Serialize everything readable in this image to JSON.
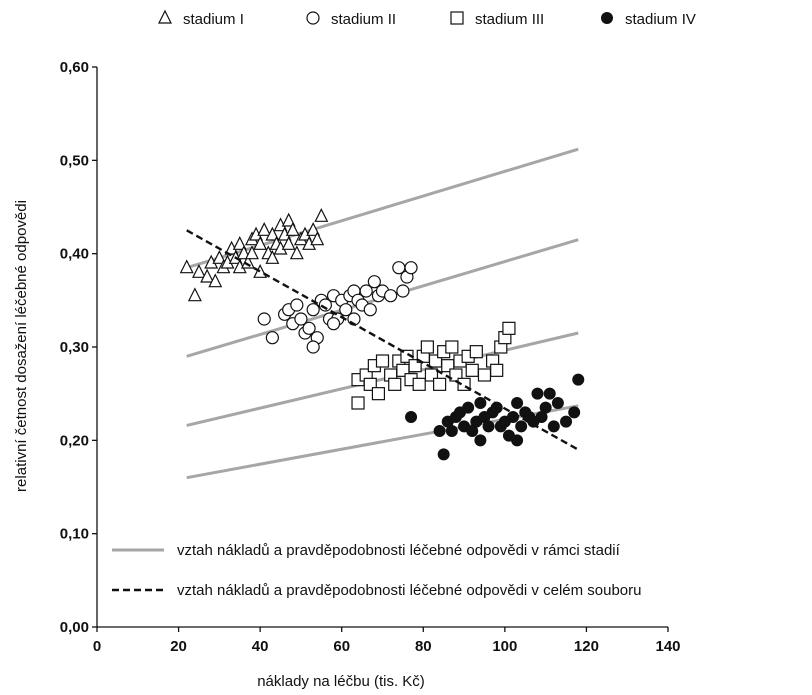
{
  "chart_data": {
    "type": "scatter",
    "xlabel": "náklady na léčbu (tis. Kč)",
    "ylabel": "relativní četnost dosažení léčebné odpovědi",
    "xlim": [
      0,
      140
    ],
    "ylim": [
      0,
      0.6
    ],
    "x_ticks": [
      0,
      20,
      40,
      60,
      80,
      100,
      120,
      140
    ],
    "x_tick_labels": [
      "0",
      "20",
      "40",
      "60",
      "80",
      "100",
      "120",
      "140"
    ],
    "y_ticks": [
      0,
      0.1,
      0.2,
      0.3,
      0.4,
      0.5,
      0.6
    ],
    "y_tick_labels": [
      "0,00",
      "0,10",
      "0,20",
      "0,30",
      "0,40",
      "0,50",
      "0,60"
    ],
    "grid": false,
    "series": [
      {
        "name": "stadium I",
        "marker": "triangle-open",
        "points": [
          [
            22,
            0.385
          ],
          [
            24,
            0.355
          ],
          [
            25,
            0.38
          ],
          [
            27,
            0.375
          ],
          [
            28,
            0.39
          ],
          [
            29,
            0.37
          ],
          [
            30,
            0.395
          ],
          [
            31,
            0.385
          ],
          [
            32,
            0.39
          ],
          [
            33,
            0.405
          ],
          [
            34,
            0.395
          ],
          [
            35,
            0.41
          ],
          [
            35,
            0.385
          ],
          [
            36,
            0.4
          ],
          [
            37,
            0.39
          ],
          [
            38,
            0.415
          ],
          [
            38,
            0.4
          ],
          [
            39,
            0.42
          ],
          [
            40,
            0.38
          ],
          [
            40,
            0.41
          ],
          [
            41,
            0.425
          ],
          [
            42,
            0.4
          ],
          [
            43,
            0.42
          ],
          [
            43,
            0.395
          ],
          [
            44,
            0.41
          ],
          [
            45,
            0.43
          ],
          [
            45,
            0.405
          ],
          [
            46,
            0.42
          ],
          [
            47,
            0.435
          ],
          [
            47,
            0.41
          ],
          [
            48,
            0.425
          ],
          [
            49,
            0.4
          ],
          [
            50,
            0.415
          ],
          [
            51,
            0.42
          ],
          [
            52,
            0.41
          ],
          [
            53,
            0.425
          ],
          [
            54,
            0.415
          ],
          [
            55,
            0.44
          ]
        ]
      },
      {
        "name": "stadium II",
        "marker": "circle-open",
        "points": [
          [
            41,
            0.33
          ],
          [
            43,
            0.31
          ],
          [
            46,
            0.335
          ],
          [
            47,
            0.34
          ],
          [
            48,
            0.325
          ],
          [
            49,
            0.345
          ],
          [
            50,
            0.33
          ],
          [
            51,
            0.315
          ],
          [
            52,
            0.32
          ],
          [
            53,
            0.34
          ],
          [
            54,
            0.31
          ],
          [
            55,
            0.35
          ],
          [
            56,
            0.345
          ],
          [
            57,
            0.33
          ],
          [
            58,
            0.355
          ],
          [
            59,
            0.33
          ],
          [
            60,
            0.35
          ],
          [
            61,
            0.34
          ],
          [
            62,
            0.355
          ],
          [
            63,
            0.33
          ],
          [
            63,
            0.36
          ],
          [
            64,
            0.35
          ],
          [
            65,
            0.345
          ],
          [
            66,
            0.36
          ],
          [
            67,
            0.34
          ],
          [
            68,
            0.37
          ],
          [
            69,
            0.355
          ],
          [
            70,
            0.36
          ],
          [
            72,
            0.355
          ],
          [
            74,
            0.385
          ],
          [
            75,
            0.36
          ],
          [
            76,
            0.375
          ],
          [
            77,
            0.385
          ],
          [
            53,
            0.3
          ],
          [
            58,
            0.325
          ]
        ]
      },
      {
        "name": "stadium III",
        "marker": "square-open",
        "points": [
          [
            64,
            0.265
          ],
          [
            64,
            0.24
          ],
          [
            66,
            0.27
          ],
          [
            67,
            0.26
          ],
          [
            68,
            0.28
          ],
          [
            69,
            0.25
          ],
          [
            70,
            0.285
          ],
          [
            72,
            0.27
          ],
          [
            73,
            0.26
          ],
          [
            74,
            0.285
          ],
          [
            75,
            0.275
          ],
          [
            76,
            0.29
          ],
          [
            77,
            0.265
          ],
          [
            78,
            0.28
          ],
          [
            79,
            0.26
          ],
          [
            80,
            0.29
          ],
          [
            81,
            0.3
          ],
          [
            82,
            0.27
          ],
          [
            83,
            0.285
          ],
          [
            84,
            0.26
          ],
          [
            85,
            0.295
          ],
          [
            86,
            0.28
          ],
          [
            87,
            0.3
          ],
          [
            88,
            0.27
          ],
          [
            89,
            0.285
          ],
          [
            90,
            0.26
          ],
          [
            91,
            0.29
          ],
          [
            92,
            0.275
          ],
          [
            93,
            0.295
          ],
          [
            95,
            0.27
          ],
          [
            97,
            0.285
          ],
          [
            98,
            0.275
          ],
          [
            99,
            0.3
          ],
          [
            100,
            0.31
          ],
          [
            101,
            0.32
          ]
        ]
      },
      {
        "name": "stadium IV",
        "marker": "circle-filled",
        "points": [
          [
            77,
            0.225
          ],
          [
            84,
            0.21
          ],
          [
            85,
            0.185
          ],
          [
            86,
            0.22
          ],
          [
            87,
            0.21
          ],
          [
            88,
            0.225
          ],
          [
            89,
            0.23
          ],
          [
            90,
            0.215
          ],
          [
            91,
            0.235
          ],
          [
            92,
            0.21
          ],
          [
            93,
            0.22
          ],
          [
            94,
            0.2
          ],
          [
            95,
            0.225
          ],
          [
            96,
            0.215
          ],
          [
            97,
            0.23
          ],
          [
            98,
            0.235
          ],
          [
            99,
            0.215
          ],
          [
            100,
            0.22
          ],
          [
            101,
            0.205
          ],
          [
            102,
            0.225
          ],
          [
            103,
            0.24
          ],
          [
            104,
            0.215
          ],
          [
            105,
            0.23
          ],
          [
            106,
            0.225
          ],
          [
            107,
            0.22
          ],
          [
            108,
            0.25
          ],
          [
            109,
            0.225
          ],
          [
            110,
            0.235
          ],
          [
            111,
            0.25
          ],
          [
            112,
            0.215
          ],
          [
            113,
            0.24
          ],
          [
            115,
            0.22
          ],
          [
            117,
            0.23
          ],
          [
            118,
            0.265
          ],
          [
            94,
            0.24
          ],
          [
            103,
            0.2
          ]
        ]
      }
    ],
    "lines": [
      {
        "name": "vztah nákladů a pravděpodobnosti léčebné odpovědi v rámci stadií",
        "style": "solid-gray",
        "segments": [
          [
            [
              22,
              0.385
            ],
            [
              118,
              0.512
            ]
          ],
          [
            [
              22,
              0.29
            ],
            [
              118,
              0.415
            ]
          ],
          [
            [
              22,
              0.216
            ],
            [
              118,
              0.315
            ]
          ],
          [
            [
              22,
              0.16
            ],
            [
              118,
              0.237
            ]
          ]
        ]
      },
      {
        "name": "vztah nákladů a pravděpodobnosti léčebné odpovědi v celém souboru",
        "style": "dashed-black",
        "segments": [
          [
            [
              22,
              0.425
            ],
            [
              118,
              0.19
            ]
          ]
        ]
      }
    ],
    "legend_top": [
      "stadium I",
      "stadium II",
      "stadium III",
      "stadium IV"
    ],
    "legend_placement": "top and bottom-left inside plot"
  }
}
